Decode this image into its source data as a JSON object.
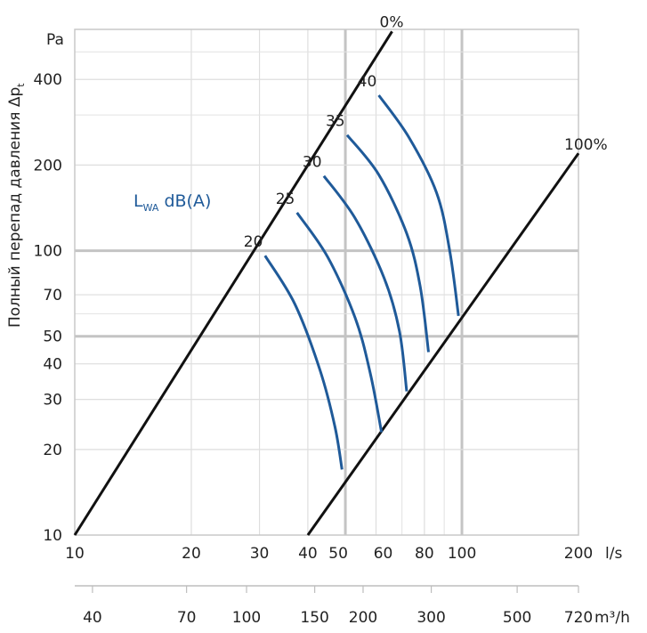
{
  "chart_data": {
    "type": "line",
    "xscale": "log",
    "yscale": "log",
    "ylabel": "Полный перепад давления Δp",
    "ylabel_sub": "t",
    "y_unit": "Pa",
    "x_unit": "l/s",
    "x2_unit": "m³/h",
    "xlim": [
      10,
      200
    ],
    "ylim": [
      10,
      600
    ],
    "grid": true,
    "y_ticks": [
      10,
      20,
      30,
      40,
      50,
      70,
      100,
      200,
      400
    ],
    "y_tick_labels": [
      "10",
      "20",
      "30",
      "40",
      "50",
      "70",
      "100",
      "200",
      "400"
    ],
    "x_ticks": [
      10,
      20,
      30,
      40,
      50,
      60,
      80,
      100,
      200
    ],
    "x_tick_labels": [
      "10",
      "20",
      "30",
      "40",
      "50",
      "60",
      "80",
      "100",
      "200"
    ],
    "x2_ticks": [
      40,
      70,
      100,
      150,
      200,
      300,
      500,
      720
    ],
    "x2_tick_labels": [
      "40",
      "70",
      "100",
      "150",
      "200",
      "300",
      "500",
      "720"
    ],
    "legend_text": "L",
    "legend_sub": "WA",
    "legend_rest": " dB(A)",
    "limit_lines": [
      {
        "name": "0%",
        "points": [
          [
            10,
            10
          ],
          [
            66,
            590
          ]
        ]
      },
      {
        "name": "100%",
        "points": [
          [
            40,
            10
          ],
          [
            200,
            220
          ]
        ]
      }
    ],
    "series": [
      {
        "name": "20",
        "points": [
          [
            31,
            96
          ],
          [
            37,
            65
          ],
          [
            43,
            38
          ],
          [
            47,
            24
          ],
          [
            49,
            17
          ]
        ]
      },
      {
        "name": "25",
        "points": [
          [
            37.5,
            136
          ],
          [
            45,
            95
          ],
          [
            53,
            58
          ],
          [
            58,
            37
          ],
          [
            62,
            23
          ]
        ]
      },
      {
        "name": "30",
        "points": [
          [
            44,
            183
          ],
          [
            53,
            130
          ],
          [
            63,
            80
          ],
          [
            69,
            52
          ],
          [
            72,
            32
          ]
        ]
      },
      {
        "name": "35",
        "points": [
          [
            50.5,
            255
          ],
          [
            61,
            185
          ],
          [
            72,
            115
          ],
          [
            78,
            75
          ],
          [
            82,
            44
          ]
        ]
      },
      {
        "name": "40",
        "points": [
          [
            61,
            352
          ],
          [
            73,
            250
          ],
          [
            86,
            160
          ],
          [
            93,
            100
          ],
          [
            98,
            59
          ]
        ]
      }
    ]
  }
}
